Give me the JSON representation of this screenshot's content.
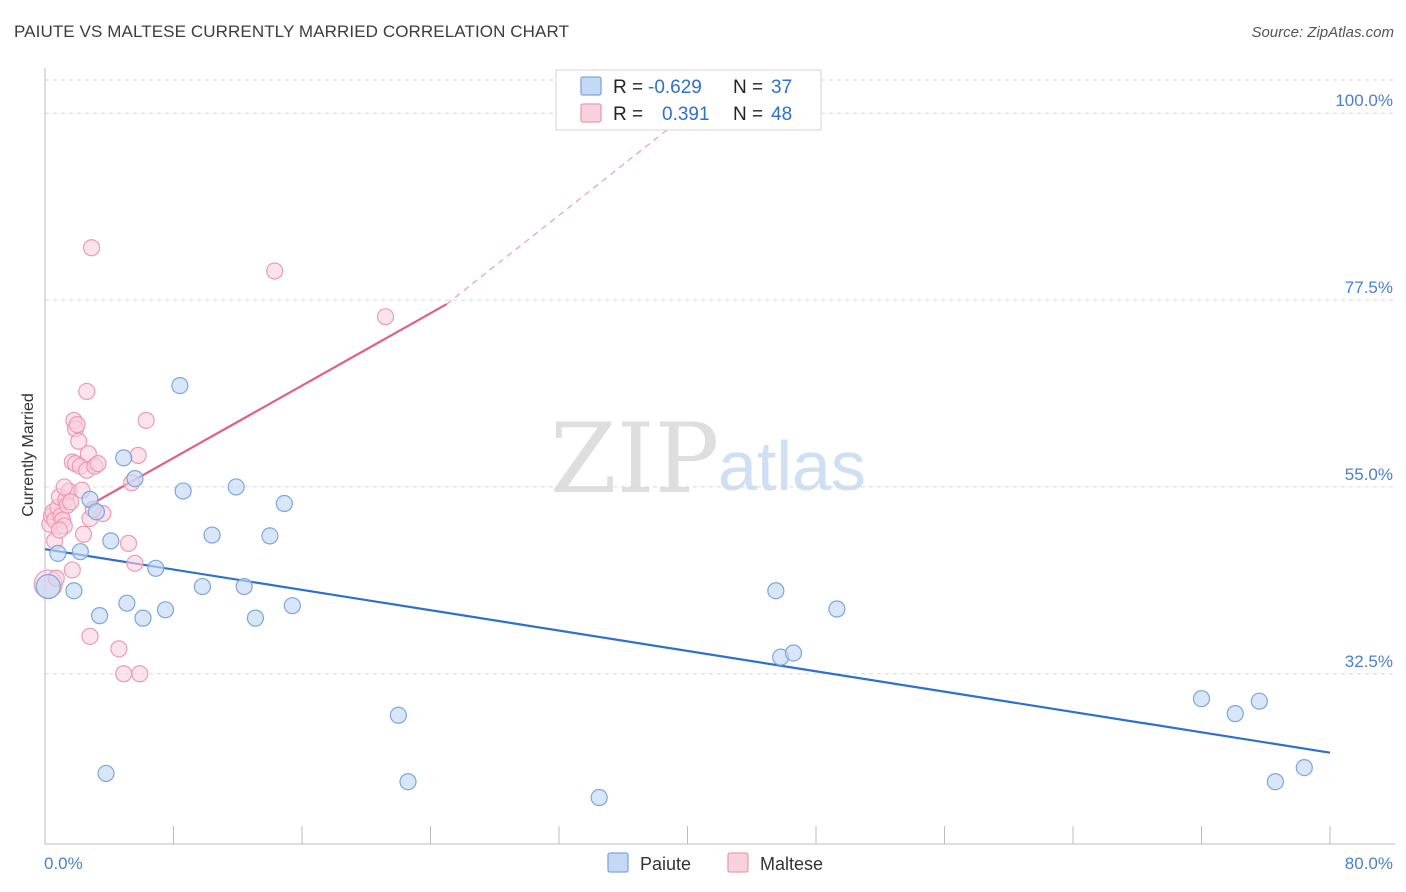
{
  "title": "PAIUTE VS MALTESE CURRENTLY MARRIED CORRELATION CHART",
  "source": "Source: ZipAtlas.com",
  "watermark": {
    "zip": "ZIP",
    "atlas": "atlas"
  },
  "colors": {
    "blue": "#2e6fcf",
    "blue_fill": "#c5d9f4",
    "blue_stroke": "#7ba6e0",
    "pink": "#e0608a",
    "pink_fill": "#f9d1dd",
    "pink_stroke": "#ee9ab3",
    "grid": "#d8d8d8"
  },
  "legend_top": [
    {
      "series": "Paiute",
      "r_label": "R =",
      "r_value": "-0.629",
      "n_label": "N =",
      "n_value": "37"
    },
    {
      "series": "Maltese",
      "r_label": "R =",
      "r_value": "0.391",
      "n_label": "N =",
      "n_value": "48"
    }
  ],
  "chart_data": {
    "type": "scatter",
    "title": "PAIUTE VS MALTESE CURRENTLY MARRIED CORRELATION CHART",
    "xlabel": "",
    "ylabel": "Currently Married",
    "xlim": [
      0,
      80
    ],
    "ylim": [
      12,
      104
    ],
    "x_tick_labels": [
      "0.0%",
      "80.0%"
    ],
    "y_ticks": [
      32.5,
      55.0,
      77.5,
      100.0
    ],
    "y_tick_labels": [
      "32.5%",
      "55.0%",
      "77.5%",
      "100.0%"
    ],
    "legend": [
      "Paiute",
      "Maltese"
    ],
    "series": [
      {
        "name": "Paiute",
        "color": "#2e6fcf",
        "points": [
          [
            0.2,
            43.0
          ],
          [
            0.8,
            47.0
          ],
          [
            1.8,
            42.5
          ],
          [
            2.2,
            47.2
          ],
          [
            2.8,
            53.5
          ],
          [
            3.2,
            52.0
          ],
          [
            3.4,
            39.5
          ],
          [
            3.8,
            20.5
          ],
          [
            4.1,
            48.5
          ],
          [
            4.9,
            58.5
          ],
          [
            5.1,
            41.0
          ],
          [
            5.6,
            56.0
          ],
          [
            6.1,
            39.2
          ],
          [
            6.9,
            45.2
          ],
          [
            7.5,
            40.2
          ],
          [
            8.4,
            67.2
          ],
          [
            8.6,
            54.5
          ],
          [
            9.8,
            43.0
          ],
          [
            10.4,
            49.2
          ],
          [
            11.9,
            55.0
          ],
          [
            12.4,
            43.0
          ],
          [
            13.1,
            39.2
          ],
          [
            14.0,
            49.1
          ],
          [
            14.9,
            53.0
          ],
          [
            15.4,
            40.7
          ],
          [
            22.0,
            27.5
          ],
          [
            22.6,
            19.5
          ],
          [
            34.5,
            17.6
          ],
          [
            45.5,
            42.5
          ],
          [
            45.8,
            34.5
          ],
          [
            46.6,
            35.0
          ],
          [
            49.3,
            40.3
          ],
          [
            72.0,
            29.5
          ],
          [
            74.1,
            27.7
          ],
          [
            75.6,
            29.2
          ],
          [
            76.6,
            19.5
          ],
          [
            78.4,
            21.2
          ]
        ],
        "trend": {
          "x": [
            0,
            80
          ],
          "y": [
            47.5,
            23.0
          ]
        }
      },
      {
        "name": "Maltese",
        "color": "#e0608a",
        "points": [
          [
            0.2,
            43.3
          ],
          [
            0.3,
            50.5
          ],
          [
            0.4,
            51.5
          ],
          [
            0.5,
            52.0
          ],
          [
            0.6,
            51.0
          ],
          [
            0.6,
            48.5
          ],
          [
            0.7,
            44.0
          ],
          [
            0.8,
            52.5
          ],
          [
            0.9,
            53.8
          ],
          [
            1.0,
            51.5
          ],
          [
            1.1,
            51.0
          ],
          [
            1.2,
            50.3
          ],
          [
            1.3,
            53.5
          ],
          [
            1.4,
            52.8
          ],
          [
            1.5,
            54.5
          ],
          [
            1.6,
            53.2
          ],
          [
            1.7,
            45.0
          ],
          [
            1.7,
            58.0
          ],
          [
            1.8,
            63.0
          ],
          [
            1.9,
            62.0
          ],
          [
            1.9,
            57.8
          ],
          [
            2.0,
            62.5
          ],
          [
            2.1,
            60.5
          ],
          [
            2.2,
            57.5
          ],
          [
            2.4,
            49.3
          ],
          [
            2.6,
            57.0
          ],
          [
            2.6,
            66.5
          ],
          [
            2.7,
            59.0
          ],
          [
            2.8,
            51.2
          ],
          [
            2.8,
            37.0
          ],
          [
            2.9,
            83.8
          ],
          [
            3.1,
            57.5
          ],
          [
            3.3,
            57.8
          ],
          [
            3.6,
            51.8
          ],
          [
            4.6,
            35.5
          ],
          [
            4.9,
            32.5
          ],
          [
            5.2,
            48.2
          ],
          [
            5.4,
            55.5
          ],
          [
            5.6,
            45.8
          ],
          [
            5.8,
            58.8
          ],
          [
            5.9,
            32.5
          ],
          [
            6.3,
            63.0
          ],
          [
            14.3,
            81.0
          ],
          [
            21.2,
            75.5
          ],
          [
            1.2,
            55.0
          ],
          [
            2.3,
            54.6
          ],
          [
            0.9,
            49.8
          ],
          [
            3.0,
            52.3
          ]
        ],
        "trend": {
          "x": [
            2.5,
            25
          ],
          "y": [
            52.5,
            77.0
          ]
        },
        "trend_dashed": {
          "x": [
            25,
            42
          ],
          "y": [
            77.0,
            103.0
          ]
        }
      }
    ]
  }
}
